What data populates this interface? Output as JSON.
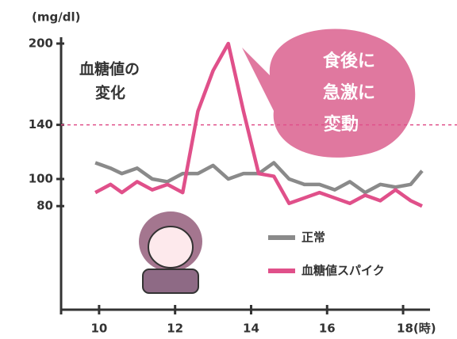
{
  "chart_data": {
    "type": "line",
    "y_unit": "(mg/dl)",
    "title_lines": [
      "血糖値の",
      "変化"
    ],
    "callout_lines": [
      "食後に",
      "急激に",
      "変動"
    ],
    "x": [
      9.9,
      10.3,
      10.6,
      11,
      11.4,
      11.8,
      12.2,
      12.6,
      13,
      13.4,
      13.8,
      14.2,
      14.6,
      15,
      15.4,
      15.8,
      16.2,
      16.6,
      17,
      17.4,
      17.8,
      18.2,
      18.5
    ],
    "series": [
      {
        "name": "正常",
        "color": "#8a8a8a",
        "values": [
          112,
          108,
          104,
          108,
          100,
          98,
          104,
          104,
          110,
          100,
          104,
          104,
          112,
          100,
          96,
          96,
          92,
          98,
          90,
          96,
          94,
          96,
          106
        ]
      },
      {
        "name": "血糖値スパイク",
        "color": "#e0508a",
        "values": [
          90,
          96,
          90,
          98,
          92,
          96,
          90,
          150,
          180,
          200,
          150,
          104,
          102,
          82,
          86,
          90,
          86,
          82,
          88,
          84,
          92,
          84,
          80
        ]
      }
    ],
    "reference_line": 140,
    "xlim": [
      9,
      18.5
    ],
    "ylim": [
      0,
      200
    ],
    "xticks": [
      10,
      12,
      14,
      16,
      {
        "value": 18,
        "label": "18(時)"
      }
    ],
    "yticks": [
      80,
      100,
      140,
      200
    ]
  }
}
